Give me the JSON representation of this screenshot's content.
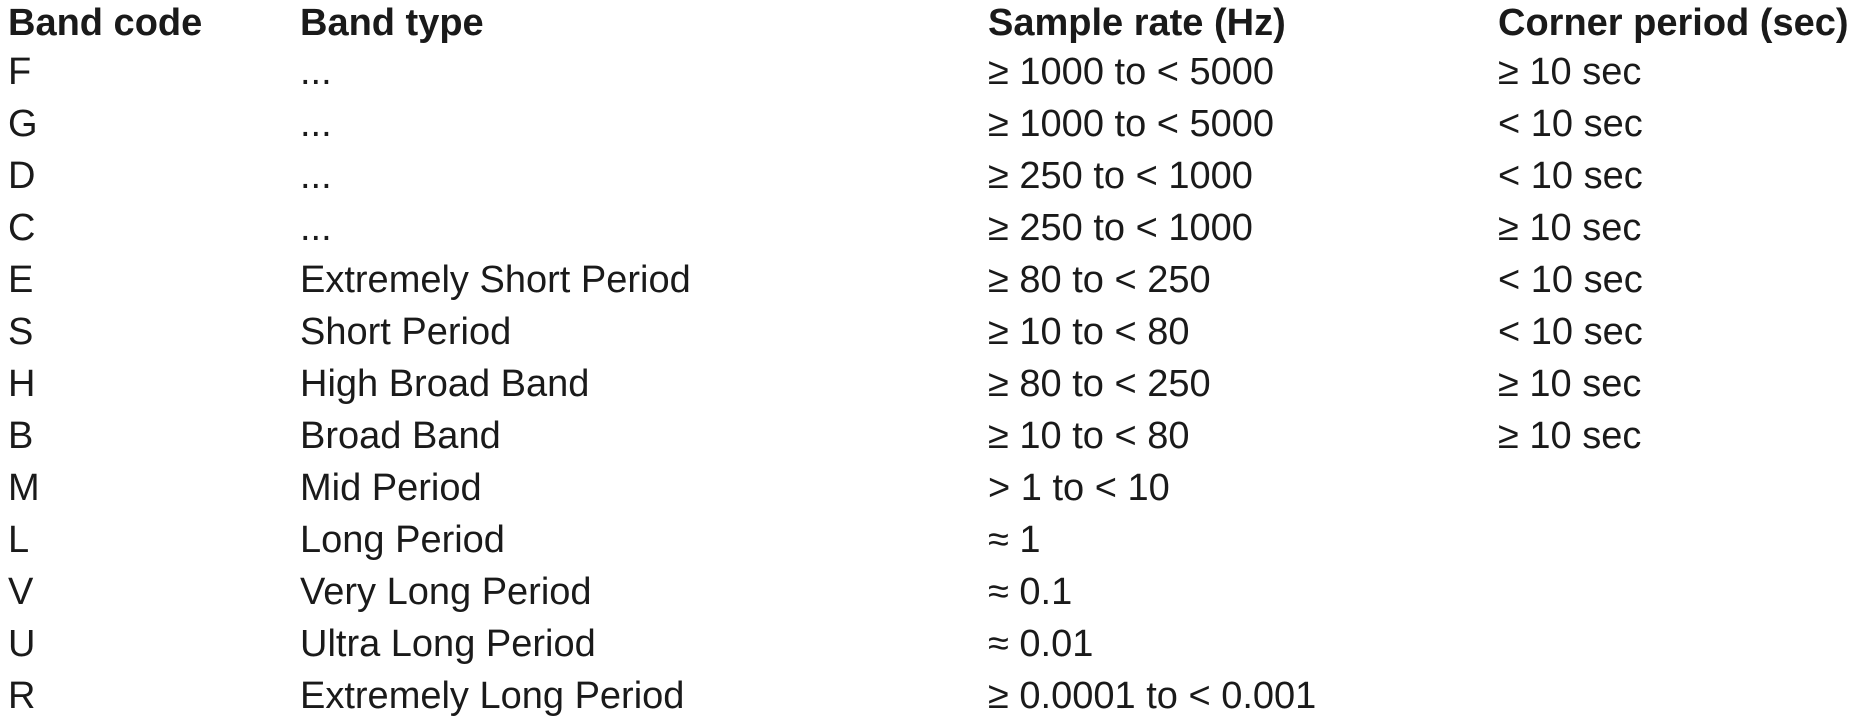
{
  "table": {
    "headers": [
      "Band code",
      "Band type",
      "Sample rate (Hz)",
      "Corner period (sec)"
    ],
    "rows": [
      [
        "F",
        "...",
        "≥ 1000 to < 5000",
        "≥ 10 sec"
      ],
      [
        "G",
        "...",
        "≥ 1000 to < 5000",
        "< 10 sec"
      ],
      [
        "D",
        "...",
        "≥ 250 to < 1000",
        "< 10 sec"
      ],
      [
        "C",
        "...",
        "≥ 250 to < 1000",
        "≥ 10 sec"
      ],
      [
        "E",
        "Extremely Short Period",
        "≥ 80 to < 250",
        "< 10 sec"
      ],
      [
        "S",
        "Short Period",
        "≥ 10 to < 80",
        "< 10 sec"
      ],
      [
        "H",
        "High Broad Band",
        "≥ 80 to < 250",
        "≥ 10 sec"
      ],
      [
        "B",
        "Broad Band",
        "≥ 10 to < 80",
        "≥ 10 sec"
      ],
      [
        "M",
        " Mid Period",
        "> 1 to < 10",
        ""
      ],
      [
        "L",
        "Long Period",
        "≈ 1",
        ""
      ],
      [
        "V",
        "Very Long Period",
        "≈ 0.1",
        ""
      ],
      [
        "U",
        "Ultra Long Period",
        "≈ 0.01",
        ""
      ],
      [
        "R",
        "Extremely Long Period",
        "≥ 0.0001 to < 0.001",
        ""
      ]
    ]
  }
}
